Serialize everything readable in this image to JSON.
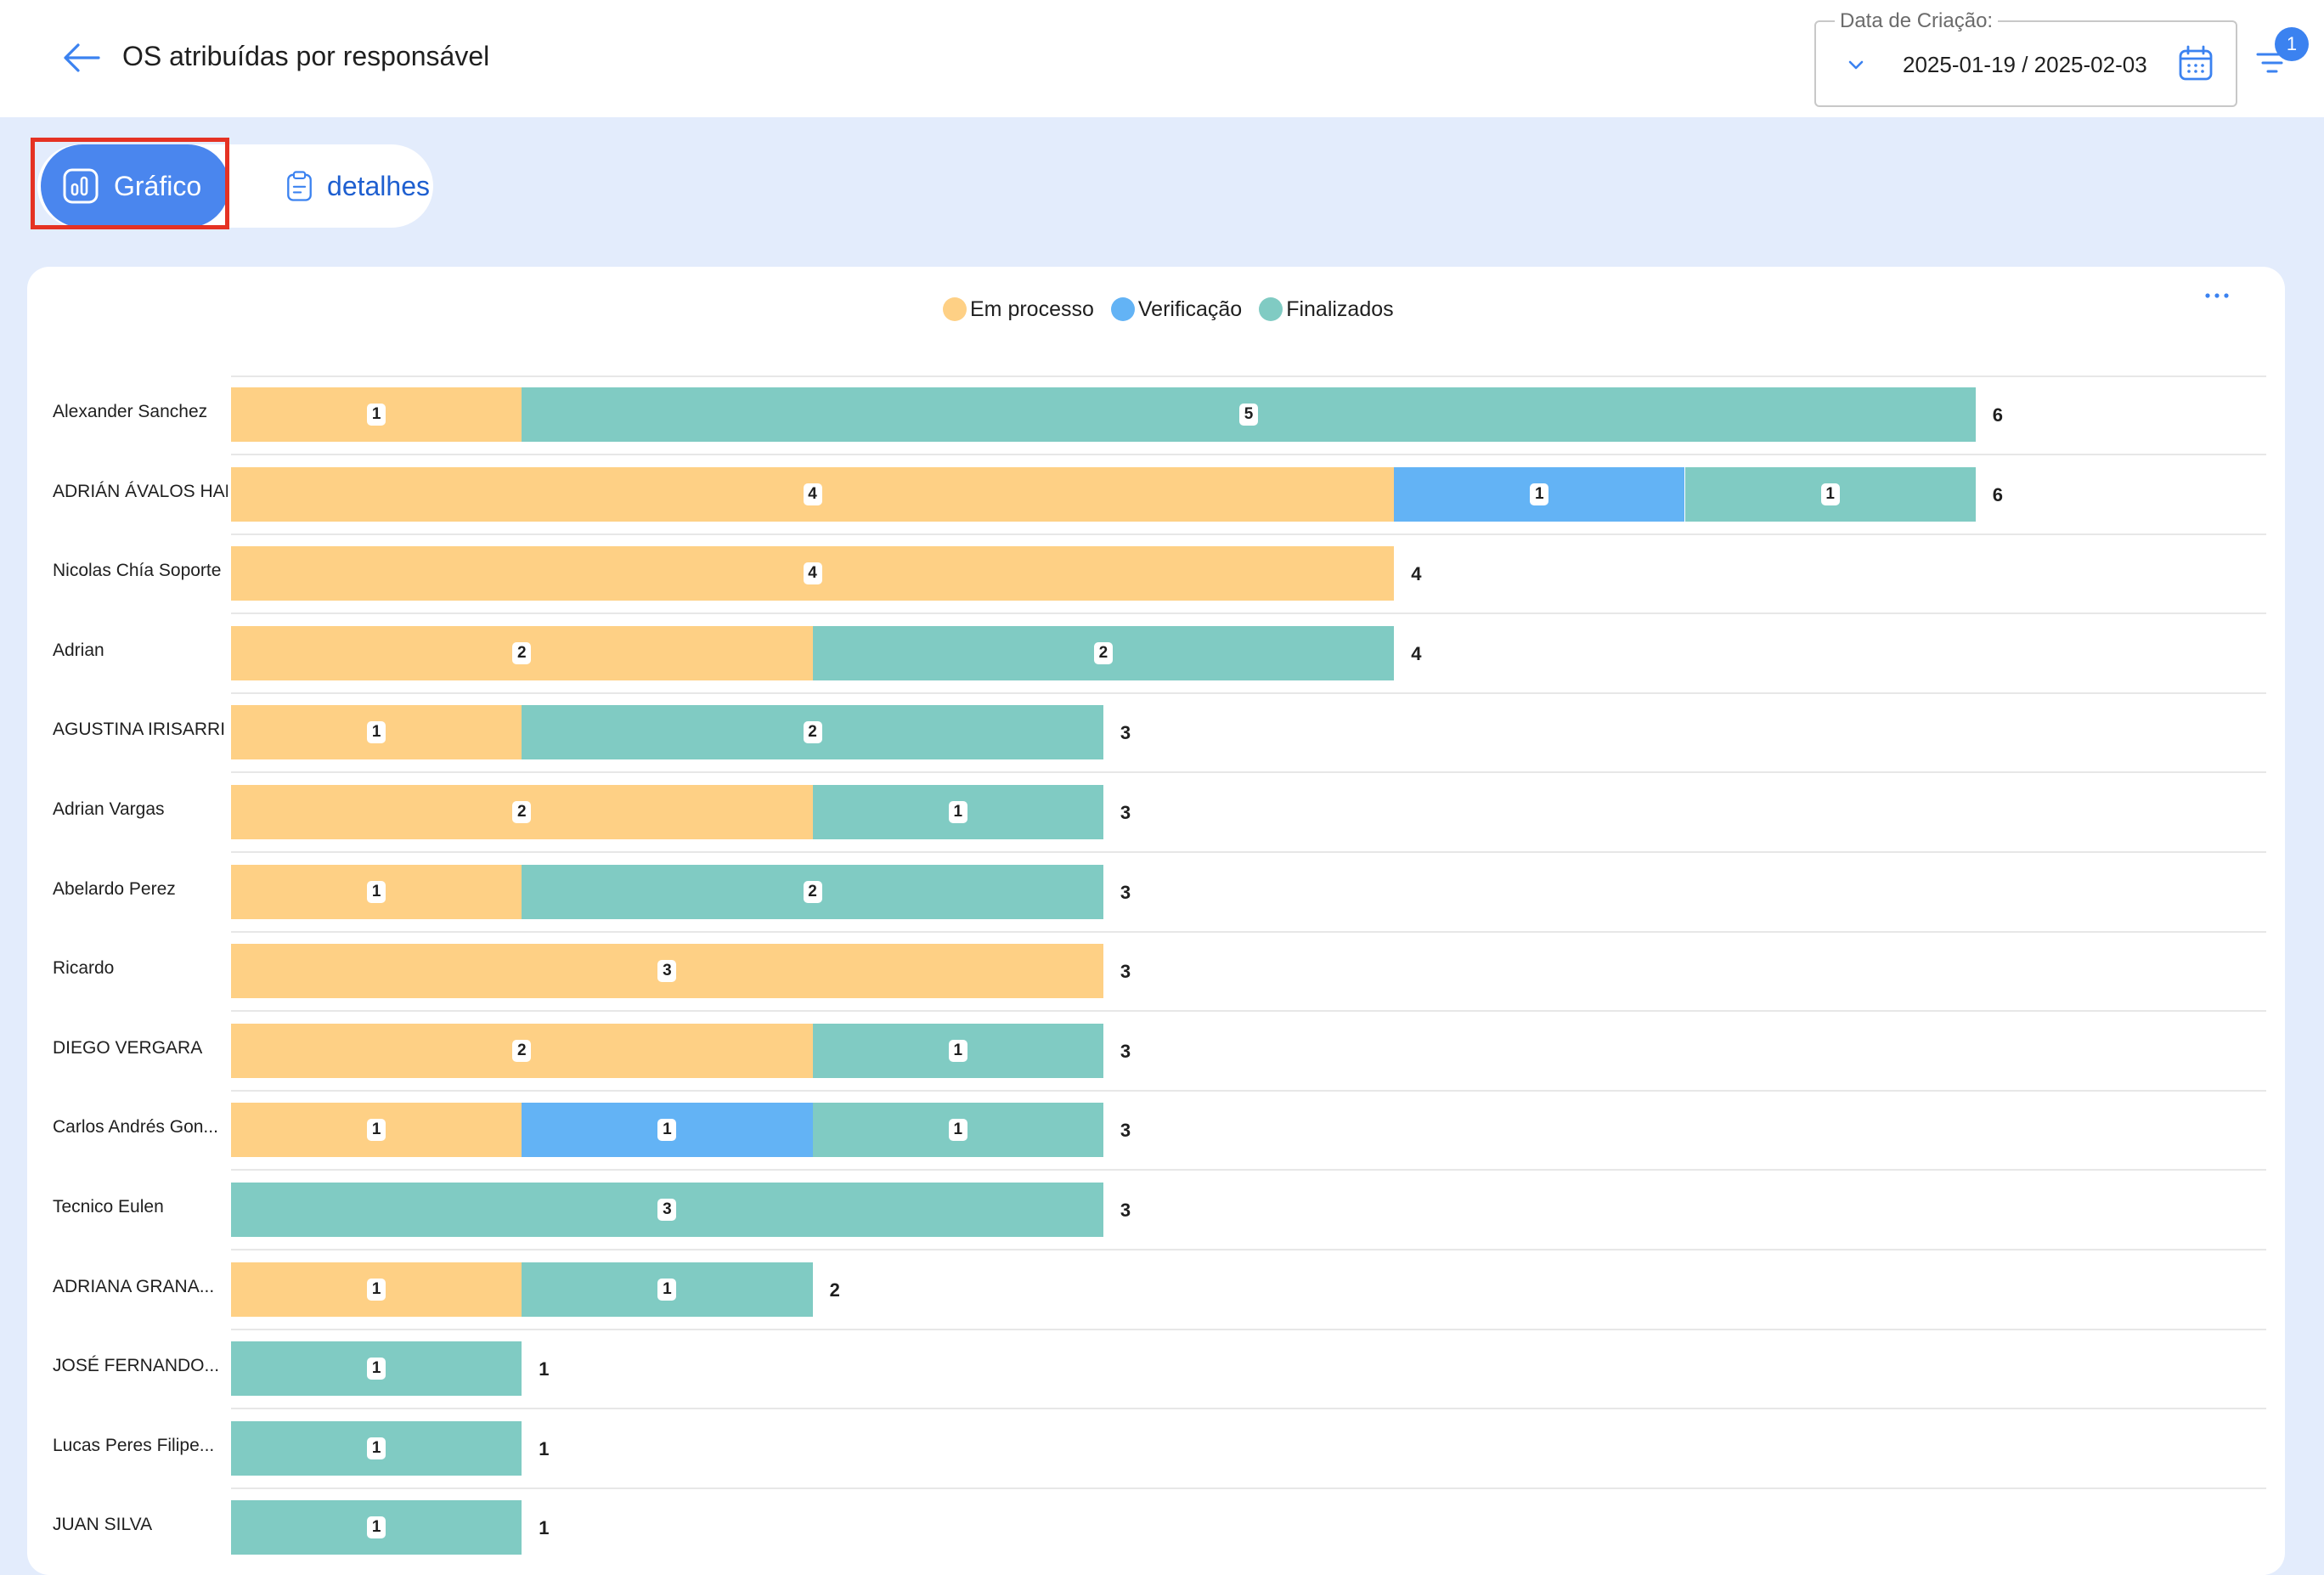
{
  "header": {
    "title": "OS atribuídas por responsável",
    "date_filter": {
      "label": "Data de Criação:",
      "value": "2025-01-19 / 2025-02-03"
    },
    "filter_badge_count": "1"
  },
  "tabs": [
    {
      "label": "Gráfico",
      "active": true
    },
    {
      "label": "detalhes",
      "active": false
    }
  ],
  "colors": {
    "em_processo": "#fed085",
    "verificacao": "#63b3f5",
    "finalizados": "#80cbc3",
    "accent": "#4a86ee"
  },
  "chart_data": {
    "type": "bar",
    "orientation": "horizontal",
    "stacked": true,
    "legend_position": "top-center",
    "grid": true,
    "categories": [
      "Alexander Sanchez",
      "ADRIÁN ÁVALOS HAL",
      "Nicolas Chía Soporte",
      "Adrian",
      "AGUSTINA IRISARRI",
      "Adrian Vargas",
      "Abelardo Perez",
      "Ricardo",
      "DIEGO VERGARA",
      "Carlos Andrés Gon...",
      "Tecnico Eulen",
      "ADRIANA GRANA...",
      "JOSÉ FERNANDO...",
      "Lucas Peres Filipe...",
      "JUAN SILVA"
    ],
    "series": [
      {
        "name": "Em processo",
        "values": [
          1,
          4,
          4,
          2,
          1,
          2,
          1,
          3,
          2,
          1,
          0,
          1,
          0,
          0,
          0
        ]
      },
      {
        "name": "Verificação",
        "values": [
          0,
          1,
          0,
          0,
          0,
          0,
          0,
          0,
          0,
          1,
          0,
          0,
          0,
          0,
          0
        ]
      },
      {
        "name": "Finalizados",
        "values": [
          5,
          1,
          0,
          2,
          2,
          1,
          2,
          0,
          1,
          1,
          3,
          1,
          1,
          1,
          1
        ]
      }
    ],
    "totals": [
      6,
      6,
      4,
      4,
      3,
      3,
      3,
      3,
      3,
      3,
      3,
      2,
      1,
      1,
      1
    ],
    "xlim": [
      0,
      7
    ]
  }
}
